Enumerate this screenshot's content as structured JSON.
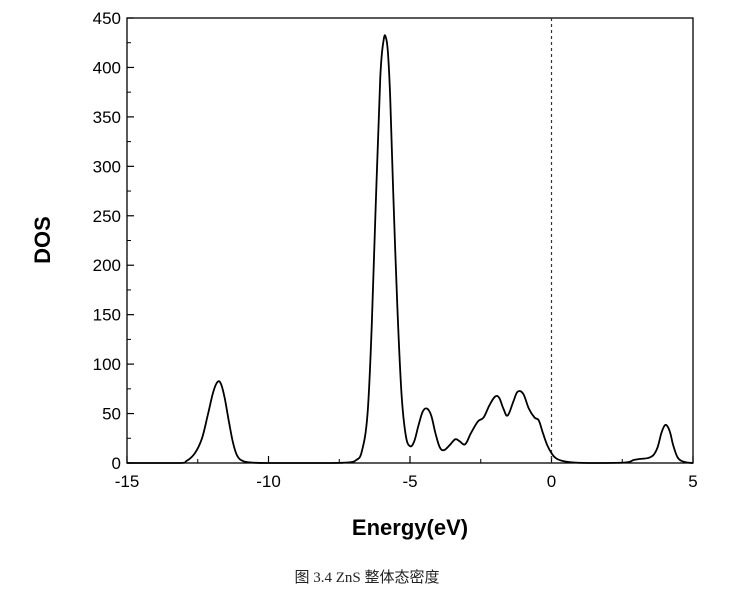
{
  "chart_data": {
    "type": "line",
    "xlabel": "Energy(eV)",
    "ylabel": "DOS",
    "xlim": [
      -15,
      5
    ],
    "ylim": [
      0,
      450
    ],
    "xticks": [
      -15,
      -10,
      -5,
      0,
      5
    ],
    "yticks": [
      0,
      50,
      100,
      150,
      200,
      250,
      300,
      350,
      400,
      450
    ],
    "fermi_line_x": 0,
    "grid": false,
    "series": [
      {
        "x": [
          -15.0,
          -13.2,
          -12.9,
          -12.6,
          -12.35,
          -12.15,
          -11.95,
          -11.8,
          -11.68,
          -11.55,
          -11.4,
          -11.25,
          -11.1,
          -10.9,
          -10.6,
          -10.0,
          -8.0,
          -7.2,
          -6.9,
          -6.7,
          -6.5,
          -6.35,
          -6.2,
          -6.05,
          -5.93,
          -5.85,
          -5.78,
          -5.7,
          -5.6,
          -5.45,
          -5.3,
          -5.15,
          -5.0,
          -4.85,
          -4.7,
          -4.55,
          -4.4,
          -4.25,
          -4.1,
          -3.95,
          -3.8,
          -3.6,
          -3.4,
          -3.25,
          -3.05,
          -2.85,
          -2.6,
          -2.4,
          -2.2,
          -2.0,
          -1.85,
          -1.7,
          -1.55,
          -1.35,
          -1.2,
          -1.0,
          -0.8,
          -0.6,
          -0.45,
          -0.3,
          -0.15,
          0.0,
          0.15,
          0.4,
          0.8,
          1.5,
          2.6,
          2.9,
          3.1,
          3.4,
          3.6,
          3.75,
          3.88,
          4.0,
          4.1,
          4.2,
          4.3,
          4.45,
          4.6,
          4.8,
          5.0
        ],
        "y": [
          0,
          0,
          2,
          10,
          25,
          48,
          72,
          82,
          80,
          66,
          42,
          20,
          7,
          2,
          0.5,
          0,
          0,
          0.5,
          3,
          12,
          50,
          140,
          270,
          390,
          428,
          430,
          415,
          370,
          280,
          160,
          70,
          28,
          17,
          22,
          38,
          52,
          55,
          48,
          30,
          16,
          13,
          18,
          24,
          22,
          19,
          30,
          42,
          46,
          58,
          67,
          66,
          55,
          48,
          62,
          72,
          70,
          55,
          46,
          43,
          30,
          18,
          10,
          5,
          2,
          0.5,
          0,
          0.5,
          3,
          4,
          5,
          8,
          16,
          30,
          38,
          37,
          30,
          18,
          6,
          2,
          0.5,
          0
        ]
      }
    ]
  },
  "caption": "图 3.4 ZnS 整体态密度"
}
